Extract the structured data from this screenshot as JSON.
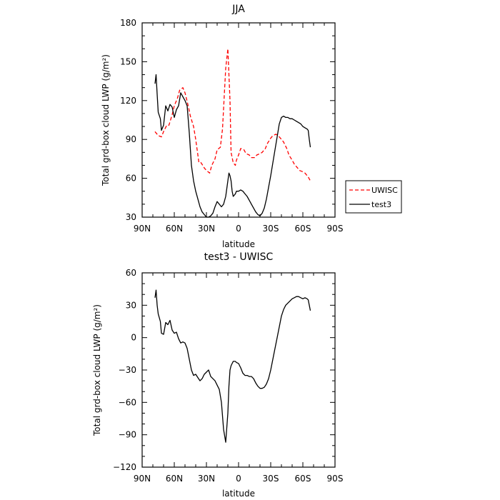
{
  "figure": {
    "background": "#ffffff"
  },
  "chart_data": [
    {
      "type": "line",
      "title": "JJA",
      "xlabel": "latitude",
      "ylabel": "Total grd-box cloud LWP (g/m²)",
      "x_axis_direction": "north-to-south (90N on left, 90S on right)",
      "xlim": [
        90,
        -90
      ],
      "ylim": [
        30,
        180
      ],
      "xticks": [
        90,
        60,
        30,
        0,
        -30,
        -60,
        -90
      ],
      "xtick_labels": [
        "90N",
        "60N",
        "30N",
        "0",
        "30S",
        "60S",
        "90S"
      ],
      "yticks": [
        30,
        60,
        90,
        120,
        150,
        180
      ],
      "ytick_labels": [
        "30",
        "60",
        "90",
        "120",
        "150",
        "180"
      ],
      "grid": false,
      "legend": {
        "placement": "right, outside axes"
      },
      "series": [
        {
          "name": "UWISC",
          "color": "#ff0000",
          "dash": "dashed",
          "x": [
            78,
            75,
            72,
            70,
            67,
            65,
            62,
            60,
            57,
            55,
            52,
            50,
            47,
            45,
            42,
            40,
            37,
            35,
            32,
            30,
            27,
            25,
            22,
            20,
            17,
            15,
            12,
            10,
            8,
            7,
            5,
            3,
            2,
            0,
            -2,
            -5,
            -7,
            -10,
            -12,
            -15,
            -17,
            -20,
            -22,
            -25,
            -27,
            -30,
            -32,
            -35,
            -37,
            -40,
            -42,
            -45,
            -47,
            -50,
            -52,
            -55,
            -57,
            -60,
            -62,
            -65,
            -67
          ],
          "y": [
            96,
            93,
            92,
            96,
            101,
            101,
            109,
            116,
            122,
            128,
            130,
            126,
            116,
            108,
            100,
            90,
            72,
            72,
            68,
            66,
            64,
            70,
            75,
            82,
            84,
            98,
            145,
            160,
            120,
            80,
            72,
            70,
            74,
            78,
            83,
            82,
            79,
            78,
            76,
            76,
            78,
            79,
            80,
            83,
            87,
            91,
            93,
            94,
            93,
            90,
            88,
            83,
            78,
            74,
            71,
            68,
            66,
            65,
            64,
            61,
            58
          ]
        },
        {
          "name": "test3",
          "color": "#000000",
          "dash": "solid",
          "x": [
            78,
            77,
            76,
            75,
            73,
            72,
            70,
            68,
            66,
            64,
            62,
            60,
            58,
            56,
            54,
            52,
            50,
            48,
            46,
            44,
            42,
            40,
            38,
            36,
            34,
            32,
            30,
            28,
            26,
            24,
            22,
            20,
            18,
            16,
            14,
            12,
            10,
            9,
            8,
            7,
            6,
            5,
            3,
            2,
            0,
            -2,
            -4,
            -6,
            -8,
            -10,
            -12,
            -14,
            -16,
            -18,
            -20,
            -22,
            -24,
            -26,
            -28,
            -30,
            -32,
            -34,
            -36,
            -38,
            -40,
            -42,
            -44,
            -46,
            -48,
            -50,
            -52,
            -54,
            -56,
            -58,
            -60,
            -62,
            -64,
            -65,
            -66,
            -67
          ],
          "y": [
            133,
            140,
            125,
            111,
            106,
            97,
            101,
            116,
            112,
            117,
            115,
            107,
            113,
            116,
            126,
            123,
            120,
            116,
            95,
            70,
            58,
            50,
            44,
            38,
            34,
            32,
            30,
            30,
            31,
            33,
            38,
            42,
            40,
            38,
            40,
            46,
            58,
            64,
            62,
            58,
            50,
            46,
            48,
            50,
            50,
            51,
            50,
            48,
            46,
            43,
            40,
            37,
            34,
            32,
            31,
            33,
            37,
            44,
            53,
            62,
            72,
            82,
            92,
            102,
            107,
            108,
            107,
            107,
            106,
            106,
            105,
            104,
            103,
            102,
            100,
            99,
            98,
            97,
            90,
            84
          ]
        }
      ]
    },
    {
      "type": "line",
      "title": "test3 - UWISC",
      "xlabel": "latitude",
      "ylabel": "Total grd-box cloud LWP (g/m²)",
      "x_axis_direction": "north-to-south (90N on left, 90S on right)",
      "xlim": [
        90,
        -90
      ],
      "ylim": [
        -120,
        60
      ],
      "xticks": [
        90,
        60,
        30,
        0,
        -30,
        -60,
        -90
      ],
      "xtick_labels": [
        "90N",
        "60N",
        "30N",
        "0",
        "30S",
        "60S",
        "90S"
      ],
      "yticks": [
        -120,
        -90,
        -60,
        -30,
        0,
        30,
        60
      ],
      "ytick_labels": [
        "−120",
        "−90",
        "−60",
        "−30",
        "0",
        "30",
        "60"
      ],
      "grid": false,
      "series": [
        {
          "color": "#000000",
          "dash": "solid",
          "x": [
            78,
            77,
            76,
            75,
            73,
            72,
            70,
            68,
            66,
            64,
            62,
            60,
            58,
            56,
            54,
            52,
            50,
            48,
            46,
            44,
            42,
            40,
            38,
            36,
            34,
            32,
            30,
            28,
            26,
            24,
            22,
            20,
            18,
            16,
            14,
            12,
            10,
            9,
            8,
            7,
            6,
            5,
            3,
            2,
            0,
            -2,
            -4,
            -6,
            -8,
            -10,
            -12,
            -14,
            -16,
            -18,
            -20,
            -22,
            -24,
            -26,
            -28,
            -30,
            -32,
            -34,
            -36,
            -38,
            -40,
            -42,
            -44,
            -46,
            -48,
            -50,
            -52,
            -54,
            -56,
            -58,
            -60,
            -62,
            -64,
            -65,
            -66,
            -67
          ],
          "y": [
            37,
            44,
            30,
            22,
            15,
            4,
            3,
            14,
            12,
            16,
            7,
            4,
            5,
            -1,
            -5,
            -4,
            -5,
            -10,
            -20,
            -30,
            -35,
            -34,
            -37,
            -40,
            -38,
            -34,
            -32,
            -30,
            -36,
            -38,
            -40,
            -44,
            -48,
            -60,
            -85,
            -97,
            -70,
            -45,
            -30,
            -26,
            -24,
            -22,
            -22,
            -23,
            -24,
            -28,
            -33,
            -35,
            -35,
            -36,
            -36,
            -38,
            -42,
            -45,
            -47,
            -47,
            -46,
            -43,
            -38,
            -30,
            -20,
            -10,
            0,
            10,
            20,
            26,
            30,
            32,
            34,
            36,
            37,
            38,
            38,
            37,
            36,
            37,
            36,
            35,
            30,
            25
          ]
        }
      ]
    }
  ]
}
